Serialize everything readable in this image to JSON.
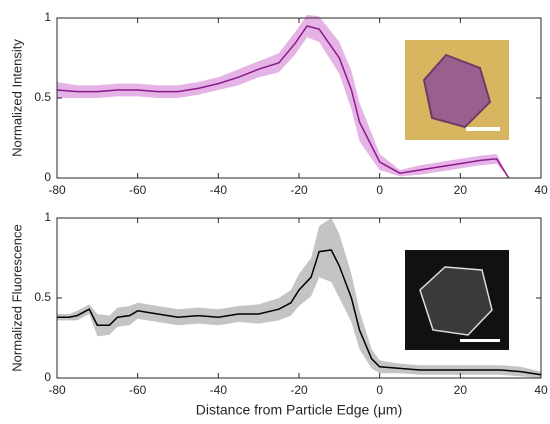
{
  "chart_data": [
    {
      "type": "line",
      "ylabel": "Normalized Intensity",
      "x": [
        -80,
        -75,
        -70,
        -65,
        -60,
        -55,
        -50,
        -45,
        -40,
        -35,
        -30,
        -25,
        -21,
        -18,
        -15,
        -10,
        -7,
        -5,
        -2,
        0,
        5,
        10,
        15,
        20,
        25,
        29,
        32
      ],
      "series": [
        {
          "color": "#8b1a8b",
          "band_color": "#e6b3e6",
          "values": [
            0.55,
            0.54,
            0.54,
            0.55,
            0.55,
            0.54,
            0.54,
            0.56,
            0.59,
            0.63,
            0.68,
            0.72,
            0.84,
            0.95,
            0.93,
            0.75,
            0.55,
            0.35,
            0.2,
            0.1,
            0.03,
            0.05,
            0.07,
            0.09,
            0.11,
            0.12,
            0.0
          ],
          "error": [
            0.05,
            0.04,
            0.04,
            0.04,
            0.04,
            0.04,
            0.04,
            0.04,
            0.04,
            0.05,
            0.05,
            0.06,
            0.07,
            0.07,
            0.08,
            0.1,
            0.12,
            0.12,
            0.08,
            0.05,
            0.02,
            0.03,
            0.03,
            0.03,
            0.03,
            0.03,
            0.0
          ]
        }
      ],
      "xlim": [
        -80,
        40
      ],
      "xticks": [
        -80,
        -60,
        -40,
        -20,
        0,
        20,
        40
      ],
      "ylim": [
        0,
        1
      ],
      "yticks": [
        0,
        0.5,
        1
      ]
    },
    {
      "type": "line",
      "ylabel": "Normalized Fluorescence",
      "xlabel": "Distance from Particle Edge (μm)",
      "x": [
        -80,
        -77,
        -75,
        -72,
        -70,
        -67,
        -65,
        -62,
        -60,
        -55,
        -50,
        -45,
        -40,
        -35,
        -30,
        -25,
        -22,
        -20,
        -17,
        -15,
        -12,
        -10,
        -7,
        -5,
        -2,
        0,
        5,
        10,
        15,
        20,
        25,
        30,
        35,
        40
      ],
      "series": [
        {
          "color": "#000000",
          "band_color": "#c4c4c4",
          "values": [
            0.38,
            0.38,
            0.39,
            0.43,
            0.33,
            0.33,
            0.38,
            0.39,
            0.42,
            0.4,
            0.38,
            0.39,
            0.38,
            0.4,
            0.4,
            0.43,
            0.47,
            0.55,
            0.63,
            0.79,
            0.8,
            0.7,
            0.5,
            0.3,
            0.12,
            0.07,
            0.06,
            0.05,
            0.05,
            0.05,
            0.05,
            0.05,
            0.04,
            0.02
          ],
          "error": [
            0.02,
            0.02,
            0.03,
            0.03,
            0.07,
            0.06,
            0.06,
            0.06,
            0.05,
            0.05,
            0.05,
            0.05,
            0.05,
            0.05,
            0.06,
            0.07,
            0.08,
            0.1,
            0.12,
            0.16,
            0.2,
            0.2,
            0.15,
            0.12,
            0.06,
            0.04,
            0.03,
            0.03,
            0.03,
            0.03,
            0.03,
            0.03,
            0.03,
            0.02
          ]
        }
      ],
      "xlim": [
        -80,
        40
      ],
      "xticks": [
        -80,
        -60,
        -40,
        -20,
        0,
        20,
        40
      ],
      "ylim": [
        0,
        1
      ],
      "yticks": [
        0,
        0.5,
        1
      ]
    }
  ]
}
